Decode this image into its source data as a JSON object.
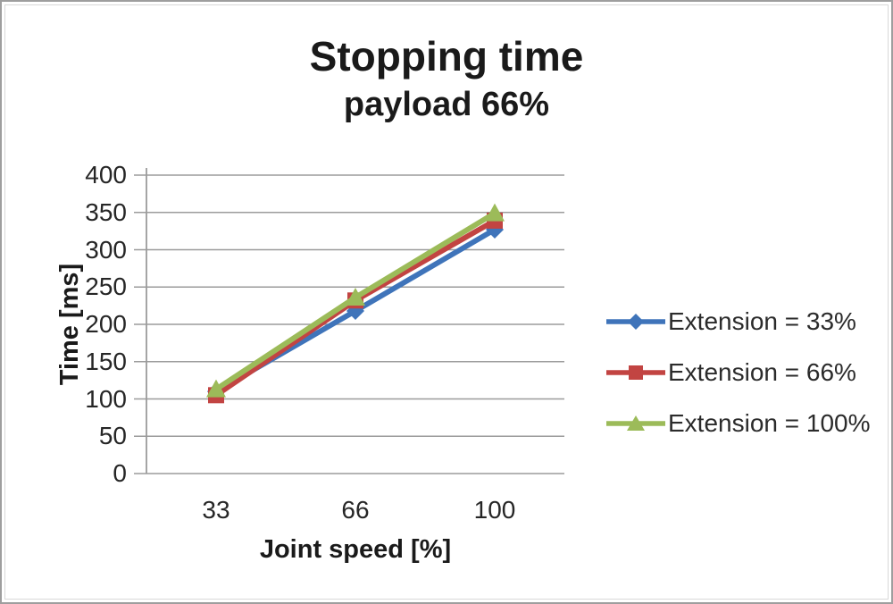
{
  "chart_data": {
    "type": "line",
    "title": "Stopping time",
    "subtitle": "payload 66%",
    "xlabel": "Joint speed [%]",
    "ylabel": "Time [ms]",
    "categories": [
      "33",
      "66",
      "100"
    ],
    "ylim": [
      0,
      400
    ],
    "ytick_step": 50,
    "yticks": [
      0,
      50,
      100,
      150,
      200,
      250,
      300,
      350,
      400
    ],
    "grid": true,
    "legend_position": "right",
    "grid_color": "#9b9b9b",
    "axis_color": "#9b9b9b",
    "series": [
      {
        "name": "Extension = 33%",
        "color": "#3f74ba",
        "marker": "diamond",
        "values": [
          110,
          218,
          327
        ]
      },
      {
        "name": "Extension = 66%",
        "color": "#c24442",
        "marker": "square",
        "values": [
          105,
          232,
          339
        ]
      },
      {
        "name": "Extension = 100%",
        "color": "#9cbb59",
        "marker": "triangle",
        "values": [
          113,
          236,
          349
        ]
      }
    ]
  }
}
